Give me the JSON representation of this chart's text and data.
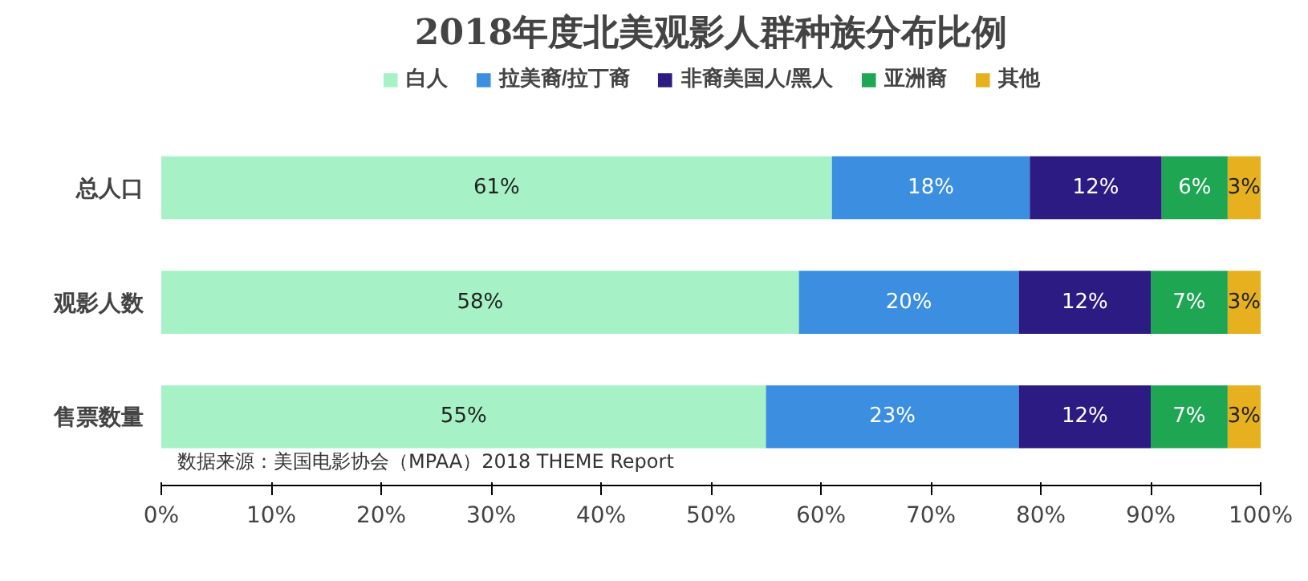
{
  "chart_data": {
    "type": "bar",
    "orientation": "horizontal",
    "stacked": true,
    "title": "2018年度北美观影人群种族分布比例",
    "categories": [
      "总人口",
      "观影人数",
      "售票数量"
    ],
    "series": [
      {
        "name": "白人",
        "color": "#a6f2c6",
        "values": [
          61,
          58,
          55
        ],
        "value_labels": [
          "61%",
          "58%",
          "55%"
        ]
      },
      {
        "name": "拉美裔/拉丁裔",
        "color": "#3b8ee0",
        "values": [
          18,
          20,
          23
        ],
        "value_labels": [
          "18%",
          "20%",
          "23%"
        ]
      },
      {
        "name": "非裔美国人/黑人",
        "color": "#2b1b82",
        "values": [
          12,
          12,
          12
        ],
        "value_labels": [
          "12%",
          "12%",
          "12%"
        ]
      },
      {
        "name": "亚洲裔",
        "color": "#1fa653",
        "values": [
          6,
          7,
          7
        ],
        "value_labels": [
          "6%",
          "7%",
          "7%"
        ]
      },
      {
        "name": "其他",
        "color": "#e6b01e",
        "values": [
          3,
          3,
          3
        ],
        "value_labels": [
          "3%",
          "3%",
          "3%"
        ]
      }
    ],
    "xlim": [
      0,
      100
    ],
    "xticks": [
      {
        "value": 0,
        "label": "0%"
      },
      {
        "value": 10,
        "label": "10%"
      },
      {
        "value": 20,
        "label": "20%"
      },
      {
        "value": 30,
        "label": "30%"
      },
      {
        "value": 40,
        "label": "40%"
      },
      {
        "value": 50,
        "label": "50%"
      },
      {
        "value": 60,
        "label": "60%"
      },
      {
        "value": 70,
        "label": "70%"
      },
      {
        "value": 80,
        "label": "80%"
      },
      {
        "value": 90,
        "label": "90%"
      },
      {
        "value": 100,
        "label": "100%"
      }
    ],
    "grid": false,
    "legend": "top",
    "annotations": [
      "数据来源：美国电影协会（MPAA）2018 THEME Report"
    ]
  }
}
